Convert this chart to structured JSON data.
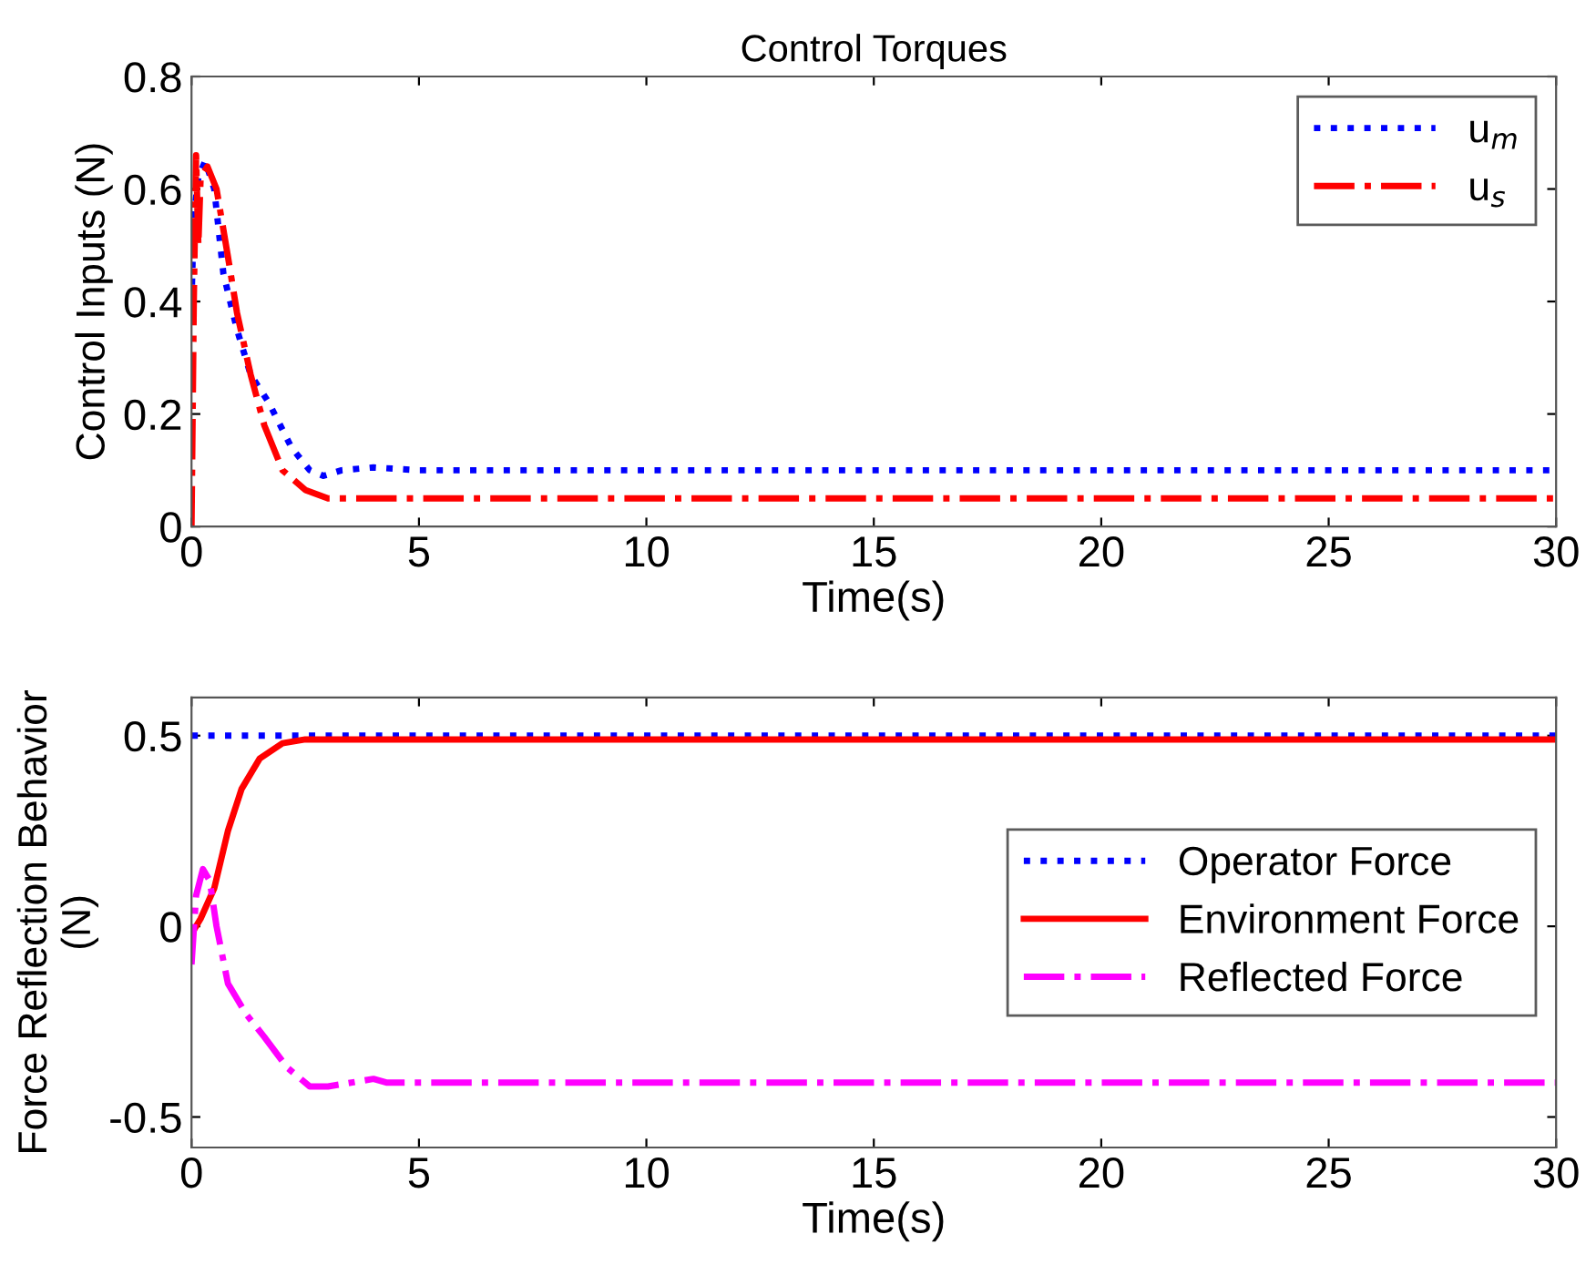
{
  "chart_data": [
    {
      "type": "line",
      "title": "Control Torques",
      "xlabel": "Time(s)",
      "ylabel": "Control Inputs (N)",
      "xlim": [
        0,
        30
      ],
      "xticks": [
        0,
        5,
        10,
        15,
        20,
        25,
        30
      ],
      "ylim": [
        0,
        0.8
      ],
      "yticks": [
        0,
        0.2,
        0.4,
        0.6,
        0.8
      ],
      "grid": false,
      "legend": "top right",
      "series": [
        {
          "name": "u$_{m}$",
          "color": "#0000ff",
          "line_style": "dotted",
          "x": [
            0,
            0.05,
            0.15,
            0.3,
            0.5,
            0.7,
            1.0,
            1.3,
            1.7,
            2.2,
            2.6,
            2.9,
            3.3,
            4,
            5,
            30
          ],
          "values": [
            0.4,
            0.55,
            0.62,
            0.65,
            0.6,
            0.45,
            0.35,
            0.27,
            0.22,
            0.14,
            0.1,
            0.09,
            0.1,
            0.105,
            0.1,
            0.1
          ]
        },
        {
          "name": "u$_{s}$",
          "color": "#ff0000",
          "line_style": "dashdot",
          "x": [
            0,
            0.05,
            0.1,
            0.15,
            0.2,
            0.35,
            0.55,
            0.8,
            1.0,
            1.3,
            1.6,
            2.0,
            2.5,
            3,
            30
          ],
          "values": [
            0,
            0.4,
            0.66,
            0.5,
            0.62,
            0.64,
            0.6,
            0.48,
            0.38,
            0.27,
            0.18,
            0.1,
            0.065,
            0.05,
            0.05
          ]
        }
      ]
    },
    {
      "type": "line",
      "xlabel": "Time(s)",
      "ylabel": "Force Reflection Behavior\n(N)",
      "xlim": [
        0,
        30
      ],
      "xticks": [
        0,
        5,
        10,
        15,
        20,
        25,
        30
      ],
      "ylim": [
        -0.58,
        0.6
      ],
      "yticks": [
        -0.5,
        0,
        0.5
      ],
      "grid": false,
      "legend": "right",
      "series": [
        {
          "name": "Operator Force",
          "color": "#0000ff",
          "line_style": "dotted",
          "x": [
            0,
            30
          ],
          "values": [
            0.5,
            0.5
          ]
        },
        {
          "name": "Environment Force",
          "color": "#ff0000",
          "line_style": "solid",
          "x": [
            0,
            0.2,
            0.5,
            0.8,
            1.1,
            1.5,
            2,
            2.5,
            30
          ],
          "values": [
            -0.02,
            0.02,
            0.1,
            0.25,
            0.36,
            0.44,
            0.48,
            0.49,
            0.49
          ]
        },
        {
          "name": "Reflected Force",
          "color": "#ff00ff",
          "line_style": "dashdot",
          "x": [
            0,
            0.1,
            0.25,
            0.4,
            0.55,
            0.8,
            1.2,
            1.6,
            2.1,
            2.6,
            3.0,
            4.0,
            4.3,
            30
          ],
          "values": [
            -0.1,
            0.08,
            0.15,
            0.12,
            0.0,
            -0.15,
            -0.23,
            -0.29,
            -0.37,
            -0.42,
            -0.42,
            -0.4,
            -0.41,
            -0.41
          ]
        }
      ]
    }
  ]
}
